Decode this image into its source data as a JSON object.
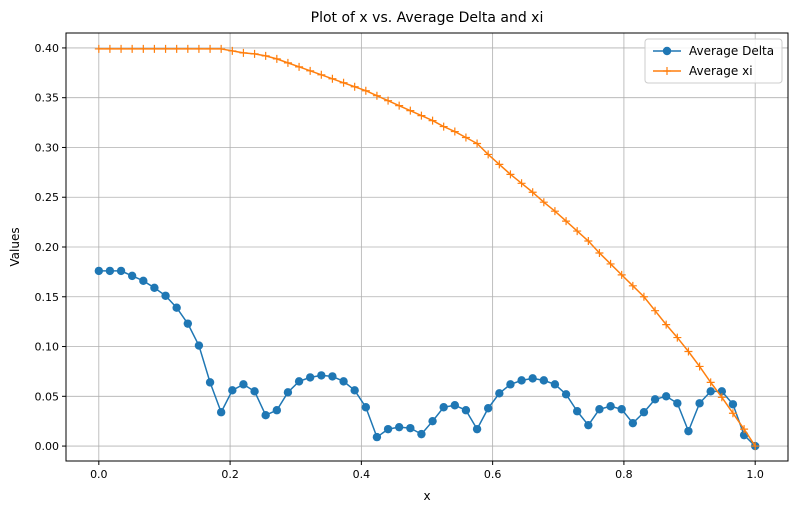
{
  "chart_data": {
    "type": "line",
    "title": "Plot of x vs. Average Delta and xi",
    "xlabel": "x",
    "ylabel": "Values",
    "xlim": [
      -0.05,
      1.05
    ],
    "ylim": [
      -0.015,
      0.415
    ],
    "xticks": [
      "0.0",
      "0.2",
      "0.4",
      "0.6",
      "0.8",
      "1.0"
    ],
    "yticks": [
      "0.00",
      "0.05",
      "0.10",
      "0.15",
      "0.20",
      "0.25",
      "0.30",
      "0.35",
      "0.40"
    ],
    "grid": true,
    "legend_position": "top-right",
    "series": [
      {
        "name": "Average Delta",
        "color": "#1f77b4",
        "marker": "circle",
        "x": [
          0.0,
          0.0169,
          0.0339,
          0.0508,
          0.0678,
          0.0847,
          0.1017,
          0.1186,
          0.1356,
          0.1525,
          0.1695,
          0.1864,
          0.2034,
          0.2203,
          0.2373,
          0.2542,
          0.2712,
          0.2881,
          0.3051,
          0.322,
          0.339,
          0.3559,
          0.3729,
          0.3898,
          0.4068,
          0.4237,
          0.4407,
          0.4576,
          0.4746,
          0.4915,
          0.5085,
          0.5254,
          0.5424,
          0.5593,
          0.5763,
          0.5932,
          0.6102,
          0.6271,
          0.6441,
          0.661,
          0.678,
          0.6949,
          0.7119,
          0.7288,
          0.7458,
          0.7627,
          0.7797,
          0.7966,
          0.8136,
          0.8305,
          0.8475,
          0.8644,
          0.8814,
          0.8983,
          0.9153,
          0.9322,
          0.9492,
          0.9661,
          0.9831,
          1.0
        ],
        "values": [
          0.176,
          0.176,
          0.176,
          0.171,
          0.166,
          0.159,
          0.151,
          0.139,
          0.123,
          0.101,
          0.064,
          0.034,
          0.056,
          0.062,
          0.055,
          0.031,
          0.036,
          0.054,
          0.065,
          0.069,
          0.071,
          0.07,
          0.065,
          0.056,
          0.039,
          0.009,
          0.017,
          0.019,
          0.018,
          0.012,
          0.025,
          0.039,
          0.041,
          0.036,
          0.017,
          0.038,
          0.053,
          0.062,
          0.066,
          0.068,
          0.066,
          0.062,
          0.052,
          0.035,
          0.021,
          0.037,
          0.04,
          0.037,
          0.023,
          0.034,
          0.047,
          0.05,
          0.043,
          0.015,
          0.043,
          0.055,
          0.055,
          0.042,
          0.011,
          0.0
        ]
      },
      {
        "name": "Average xi",
        "color": "#ff7f0e",
        "marker": "plus",
        "x": [
          0.0,
          0.0169,
          0.0339,
          0.0508,
          0.0678,
          0.0847,
          0.1017,
          0.1186,
          0.1356,
          0.1525,
          0.1695,
          0.1864,
          0.2034,
          0.2203,
          0.2373,
          0.2542,
          0.2712,
          0.2881,
          0.3051,
          0.322,
          0.339,
          0.3559,
          0.3729,
          0.3898,
          0.4068,
          0.4237,
          0.4407,
          0.4576,
          0.4746,
          0.4915,
          0.5085,
          0.5254,
          0.5424,
          0.5593,
          0.5763,
          0.5932,
          0.6102,
          0.6271,
          0.6441,
          0.661,
          0.678,
          0.6949,
          0.7119,
          0.7288,
          0.7458,
          0.7627,
          0.7797,
          0.7966,
          0.8136,
          0.8305,
          0.8475,
          0.8644,
          0.8814,
          0.8983,
          0.9153,
          0.9322,
          0.9492,
          0.9661,
          0.9831,
          1.0
        ],
        "values": [
          0.399,
          0.399,
          0.399,
          0.399,
          0.399,
          0.399,
          0.399,
          0.399,
          0.399,
          0.399,
          0.399,
          0.399,
          0.397,
          0.395,
          0.394,
          0.392,
          0.389,
          0.385,
          0.381,
          0.377,
          0.373,
          0.369,
          0.365,
          0.361,
          0.357,
          0.352,
          0.347,
          0.342,
          0.337,
          0.332,
          0.327,
          0.321,
          0.316,
          0.31,
          0.304,
          0.293,
          0.283,
          0.273,
          0.264,
          0.255,
          0.245,
          0.236,
          0.226,
          0.216,
          0.206,
          0.194,
          0.183,
          0.172,
          0.161,
          0.15,
          0.136,
          0.122,
          0.109,
          0.095,
          0.08,
          0.064,
          0.049,
          0.033,
          0.017,
          0.0
        ]
      }
    ]
  }
}
